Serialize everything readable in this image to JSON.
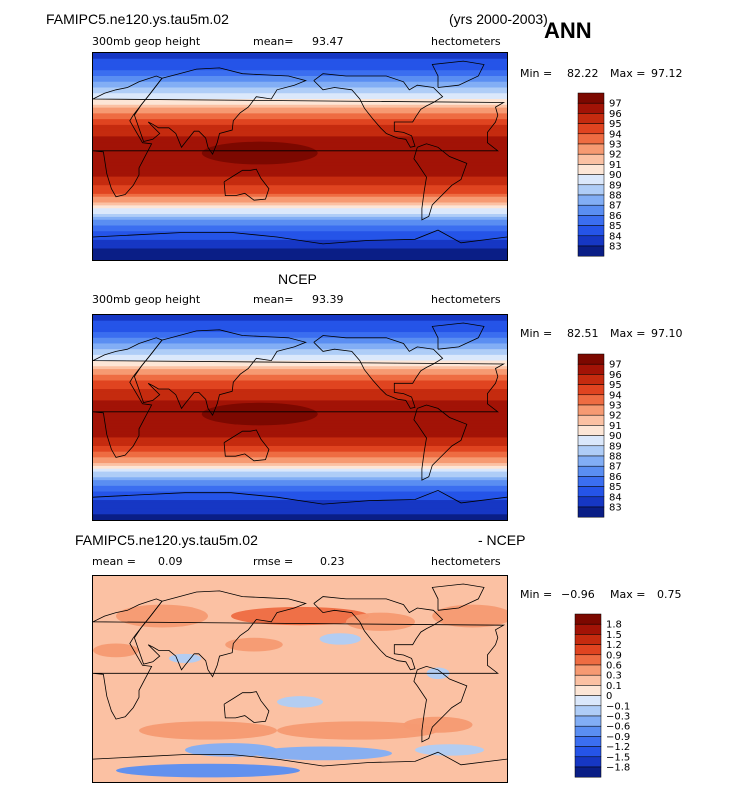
{
  "header": {
    "case_name": "FAMIPC5.ne120.ys.tau5m.02",
    "years": "(yrs 2000-2003)",
    "season": "ANN"
  },
  "panels": [
    {
      "id": "model",
      "title": "",
      "variable": "300mb geop height",
      "mean_label": "mean=",
      "mean_value": "93.47",
      "units": "hectometers",
      "min_label": "Min =",
      "min_value": "82.22",
      "max_label": "Max =",
      "max_value": "97.12"
    },
    {
      "id": "obs",
      "title": "NCEP",
      "variable": "300mb geop height",
      "mean_label": "mean=",
      "mean_value": "93.39",
      "units": "hectometers",
      "min_label": "Min =",
      "min_value": "82.51",
      "max_label": "Max =",
      "max_value": "97.10"
    },
    {
      "id": "diff",
      "title_left": "FAMIPC5.ne120.ys.tau5m.02",
      "title_right": "- NCEP",
      "mean_label": "mean =",
      "mean_value": "0.09",
      "rmse_label": "rmse =",
      "rmse_value": "0.23",
      "units": "hectometers",
      "min_label": "Min =",
      "min_value": "−0.96",
      "max_label": "Max =",
      "max_value": "0.75"
    }
  ],
  "chart_data": [
    {
      "type": "heatmap",
      "title": "FAMIPC5.ne120.ys.tau5m.02",
      "subtitle": "300mb geop height",
      "units": "hectometers",
      "mean": 93.47,
      "min": 82.22,
      "max": 97.12,
      "colorbar_levels": [
        83,
        84,
        85,
        86,
        87,
        88,
        89,
        90,
        91,
        92,
        93,
        94,
        95,
        96,
        97
      ],
      "colorbar_colors": [
        "#0a1e86",
        "#1637c4",
        "#2554e8",
        "#3b6ef0",
        "#5a8ef2",
        "#82aef5",
        "#afcdf7",
        "#dbe8fb",
        "#fde6d6",
        "#fbc1a3",
        "#f69a72",
        "#ee6c42",
        "#e04420",
        "#c52b0f",
        "#a21306",
        "#7c0800"
      ],
      "zonal_profile": [
        {
          "lat": 90,
          "value": 83.5
        },
        {
          "lat": 75,
          "value": 85.0
        },
        {
          "lat": 60,
          "value": 88.0
        },
        {
          "lat": 50,
          "value": 90.0
        },
        {
          "lat": 40,
          "value": 92.5
        },
        {
          "lat": 30,
          "value": 94.6
        },
        {
          "lat": 15,
          "value": 96.2
        },
        {
          "lat": 0,
          "value": 96.6
        },
        {
          "lat": -15,
          "value": 96.3
        },
        {
          "lat": -30,
          "value": 94.4
        },
        {
          "lat": -40,
          "value": 91.8
        },
        {
          "lat": -50,
          "value": 88.6
        },
        {
          "lat": -60,
          "value": 85.8
        },
        {
          "lat": -75,
          "value": 83.4
        },
        {
          "lat": -90,
          "value": 82.3
        }
      ]
    },
    {
      "type": "heatmap",
      "title": "NCEP",
      "subtitle": "300mb geop height",
      "units": "hectometers",
      "mean": 93.39,
      "min": 82.51,
      "max": 97.1,
      "colorbar_levels": [
        83,
        84,
        85,
        86,
        87,
        88,
        89,
        90,
        91,
        92,
        93,
        94,
        95,
        96,
        97
      ],
      "colorbar_colors": [
        "#0a1e86",
        "#1637c4",
        "#2554e8",
        "#3b6ef0",
        "#5a8ef2",
        "#82aef5",
        "#afcdf7",
        "#dbe8fb",
        "#fde6d6",
        "#fbc1a3",
        "#f69a72",
        "#ee6c42",
        "#e04420",
        "#c52b0f",
        "#a21306",
        "#7c0800"
      ],
      "zonal_profile": [
        {
          "lat": 90,
          "value": 83.6
        },
        {
          "lat": 75,
          "value": 85.1
        },
        {
          "lat": 60,
          "value": 88.1
        },
        {
          "lat": 50,
          "value": 90.1
        },
        {
          "lat": 40,
          "value": 92.4
        },
        {
          "lat": 30,
          "value": 94.5
        },
        {
          "lat": 15,
          "value": 96.1
        },
        {
          "lat": 0,
          "value": 96.5
        },
        {
          "lat": -15,
          "value": 96.2
        },
        {
          "lat": -30,
          "value": 94.3
        },
        {
          "lat": -40,
          "value": 91.7
        },
        {
          "lat": -50,
          "value": 88.5
        },
        {
          "lat": -60,
          "value": 85.9
        },
        {
          "lat": -75,
          "value": 83.6
        },
        {
          "lat": -90,
          "value": 82.6
        }
      ]
    },
    {
      "type": "heatmap",
      "title": "FAMIPC5.ne120.ys.tau5m.02 - NCEP",
      "units": "hectometers",
      "mean": 0.09,
      "rmse": 0.23,
      "min": -0.96,
      "max": 0.75,
      "colorbar_levels": [
        -1.8,
        -1.5,
        -1.2,
        -0.9,
        -0.6,
        -0.3,
        -0.1,
        0,
        0.1,
        0.3,
        0.6,
        0.9,
        1.2,
        1.5,
        1.8
      ],
      "colorbar_labels": [
        "−1.8",
        "−1.5",
        "−1.2",
        "−0.9",
        "−0.6",
        "−0.3",
        "−0.1",
        "0",
        "0.1",
        "0.3",
        "0.6",
        "0.9",
        "1.2",
        "1.5",
        "1.8"
      ],
      "colorbar_colors": [
        "#0a1e86",
        "#1637c4",
        "#2554e8",
        "#3b6ef0",
        "#5a8ef2",
        "#82aef5",
        "#afcdf7",
        "#dbe8fb",
        "#fde6d6",
        "#fbc1a3",
        "#f69a72",
        "#ee6c42",
        "#e04420",
        "#c52b0f",
        "#a21306",
        "#7c0800"
      ]
    }
  ]
}
